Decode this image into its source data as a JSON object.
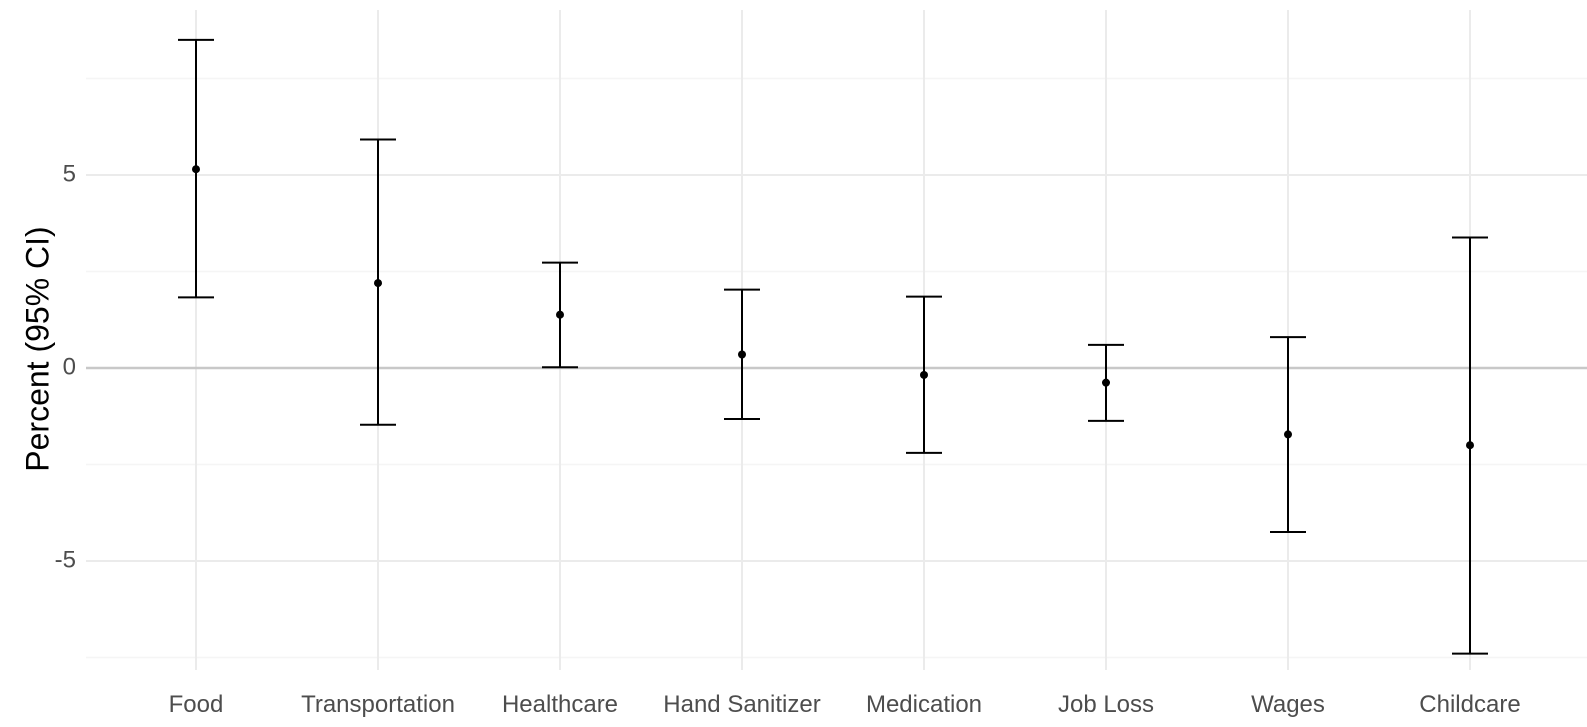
{
  "chart_data": {
    "type": "errorbar",
    "title": "",
    "xlabel": "",
    "ylabel": "Percent (95% CI)",
    "ylim": [
      -7.8,
      9.2
    ],
    "yticks": [
      5,
      0,
      -5
    ],
    "ytick_labels": [
      "5",
      "0",
      "-5"
    ],
    "grid": true,
    "reference_line": 0,
    "categories": [
      "Food",
      "Transportation",
      "Healthcare",
      "Hand Sanitizer",
      "Medication",
      "Job Loss",
      "Wages",
      "Childcare"
    ],
    "estimates": [
      5.15,
      2.2,
      1.38,
      0.35,
      -0.18,
      -0.38,
      -1.72,
      -2.0
    ],
    "lower": [
      1.83,
      -1.47,
      0.02,
      -1.32,
      -2.2,
      -1.37,
      -4.25,
      -7.4
    ],
    "upper": [
      8.5,
      5.92,
      2.73,
      2.03,
      1.85,
      0.6,
      0.8,
      3.38
    ],
    "colors": {
      "point": "#000000",
      "errorbar": "#000000",
      "grid_major": "#ebebeb",
      "grid_minor": "#f5f5f5",
      "zero_line": "#c8c8c8"
    }
  }
}
